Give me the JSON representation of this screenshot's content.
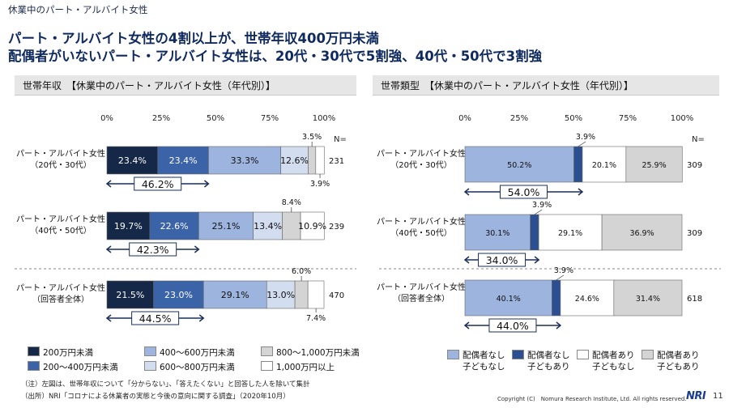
{
  "header": {
    "section": "休業中のパート・アルバイト女性",
    "headline1": "パート・アルバイト女性の4割以上が、世帯年収400万円未満",
    "headline2": "配偶者がいないパート・アルバイト女性は、20代・30代で5割強、40代・50代で3割強"
  },
  "chart_data": [
    {
      "type": "bar",
      "stacked": true,
      "orientation": "horizontal",
      "title": "世帯年収　【休業中のパート・アルバイト女性（年代別）】",
      "xlim": [
        0,
        100
      ],
      "x_ticks": [
        "0%",
        "25%",
        "50%",
        "75%",
        "100%"
      ],
      "n_header": "N=",
      "categories": [
        {
          "line1": "パート・アルバイト女性",
          "line2": "（20代・30代）",
          "n": "231"
        },
        {
          "line1": "パート・アルバイト女性",
          "line2": "（40代・50代）",
          "n": "239"
        },
        {
          "line1": "パート・アルバイト女性",
          "line2": "（回答者全体）",
          "n": "470"
        }
      ],
      "series": [
        {
          "name": "200万円未満",
          "color": "#152847",
          "values": [
            23.4,
            19.7,
            21.5
          ]
        },
        {
          "name": "200～400万円未満",
          "color": "#3b64a8",
          "values": [
            23.4,
            22.6,
            23.0
          ]
        },
        {
          "name": "400～600万円未満",
          "color": "#9db4df",
          "values": [
            33.3,
            25.1,
            29.1
          ]
        },
        {
          "name": "600～800万円未満",
          "color": "#d3ddf0",
          "values": [
            12.6,
            13.4,
            13.0
          ]
        },
        {
          "name": "800～1,000万円未満",
          "color": "#d4d4d4",
          "values": [
            3.5,
            8.4,
            6.0
          ]
        },
        {
          "name": "1,000万円以上",
          "color": "#ffffff",
          "values": [
            3.9,
            10.9,
            7.4
          ]
        }
      ],
      "bar_labels": [
        [
          "23.4%",
          "23.4%",
          "33.3%",
          "12.6%",
          "3.5%",
          "3.9%"
        ],
        [
          "19.7%",
          "22.6%",
          "25.1%",
          "13.4%",
          "8.4%",
          "10.9%"
        ],
        [
          "21.5%",
          "23.0%",
          "29.1%",
          "13.0%",
          "6.0%",
          "7.4%"
        ]
      ],
      "brackets": [
        "46.2%",
        "42.3%",
        "44.5%"
      ],
      "grid": true
    },
    {
      "type": "bar",
      "stacked": true,
      "orientation": "horizontal",
      "title": "世帯類型　【休業中のパート・アルバイト女性（年代別）】",
      "xlim": [
        0,
        100
      ],
      "x_ticks": [
        "0%",
        "25%",
        "50%",
        "75%",
        "100%"
      ],
      "n_header": "N=",
      "categories": [
        {
          "line1": "パート・アルバイト女性",
          "line2": "（20代・30代）",
          "n": "309"
        },
        {
          "line1": "パート・アルバイト女性",
          "line2": "（40代・50代）",
          "n": "309"
        },
        {
          "line1": "パート・アルバイト女性",
          "line2": "（回答者全体）",
          "n": "618"
        }
      ],
      "series": [
        {
          "name": "配偶者なし 子どもなし",
          "color": "#9db4df",
          "values": [
            50.2,
            30.1,
            40.1
          ]
        },
        {
          "name": "配偶者なし 子どもあり",
          "color": "#2b4f91",
          "values": [
            3.9,
            3.9,
            3.9
          ]
        },
        {
          "name": "配偶者あり 子どもなし",
          "color": "#ffffff",
          "values": [
            20.1,
            29.1,
            24.6
          ]
        },
        {
          "name": "配偶者あり 子どもあり",
          "color": "#d4d4d4",
          "values": [
            25.9,
            36.9,
            31.4
          ]
        }
      ],
      "bar_labels": [
        [
          "50.2%",
          "3.9%",
          "20.1%",
          "25.9%"
        ],
        [
          "30.1%",
          "3.9%",
          "29.1%",
          "36.9%"
        ],
        [
          "40.1%",
          "3.9%",
          "24.6%",
          "31.4%"
        ]
      ],
      "brackets": [
        "54.0%",
        "34.0%",
        "44.0%"
      ],
      "grid": true
    }
  ],
  "notes": {
    "note1": "（注）左図は、世帯年収について「分からない」、「答えたくない」と回答した人を除いて集計",
    "note2": "（出所）NRI「コロナによる休業者の実態と今後の意向に関する調査」（2020年10月）"
  },
  "footer": {
    "copyright": "Copyright (C)　Nomura Research Institute, Ltd. All rights reserved.",
    "logo": "NRI",
    "page": "11"
  }
}
